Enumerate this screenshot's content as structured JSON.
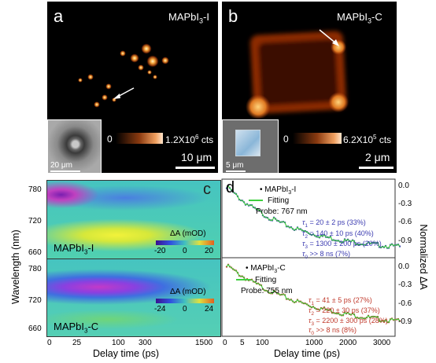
{
  "panel_a": {
    "letter": "a",
    "title_pre": "MAPbI",
    "title_sub": "3",
    "title_post": "-I",
    "cbar_min": "0",
    "cbar_max_pre": "1.2X10",
    "cbar_max_sup": "6",
    "cbar_max_post": " cts",
    "inset_scale": "20 μm",
    "scale": "10 μm"
  },
  "panel_b": {
    "letter": "b",
    "title_pre": "MAPbI",
    "title_sub": "3",
    "title_post": "-C",
    "cbar_min": "0",
    "cbar_max_pre": "6.2X10",
    "cbar_max_sup": "5",
    "cbar_max_post": " cts",
    "inset_scale": "5 μm",
    "scale": "2 μm"
  },
  "panel_c": {
    "letter": "c",
    "ylabel": "Wavelength (nm)",
    "xlabel": "Delay time (ps)",
    "yticks_top": [
      "780",
      "720",
      "660"
    ],
    "yticks_bottom": [
      "780",
      "720",
      "660"
    ],
    "xticks": [
      "0",
      "25",
      "100",
      "300",
      "1500"
    ],
    "top": {
      "name_pre": "MAPbI",
      "name_sub": "3",
      "name_post": "-I",
      "cbar_title": "ΔA (mOD)",
      "cbar_ticks": [
        "-20",
        "0",
        "20"
      ]
    },
    "bottom": {
      "name_pre": "MAPbI",
      "name_sub": "3",
      "name_post": "-C",
      "cbar_title": "ΔA (mOD)",
      "cbar_ticks": [
        "-24",
        "0",
        "24"
      ]
    }
  },
  "panel_d": {
    "letter": "d",
    "xlabel": "Delay time (ps)",
    "ylabel": "Normalized ΔA",
    "xticks": [
      "0",
      "5",
      "100",
      "1000",
      "2000",
      "3000"
    ],
    "yticks_top": [
      "0.0",
      "-0.3",
      "-0.6",
      "-0.9"
    ],
    "yticks_bottom": [
      "0.0",
      "-0.3",
      "-0.6",
      "-0.9"
    ],
    "top": {
      "legend_pre": "MAPbI",
      "legend_sub": "3",
      "legend_post": "-I",
      "fitting": "Fitting",
      "probe": "Probe: 767 nm",
      "color": "#3a3ab0",
      "fits": [
        {
          "sym": "τ",
          "sub": "1",
          "text": " = 20 ± 2 ps (33%)"
        },
        {
          "sym": "τ",
          "sub": "2",
          "text": " = 140 ± 10 ps (40%)"
        },
        {
          "sym": "τ",
          "sub": "3",
          "text": " = 1300 ± 200 ps (20%)"
        },
        {
          "sym": "τ",
          "sub": "0",
          "text": " >> 8 ns (7%)"
        }
      ]
    },
    "bottom": {
      "legend_pre": "MAPbI",
      "legend_sub": "3",
      "legend_post": "-C",
      "fitting": "Fitting",
      "probe": "Probe: 755 nm",
      "color": "#c0392b",
      "fits": [
        {
          "sym": "τ",
          "sub": "1",
          "text": " = 41 ± 5 ps (27%)"
        },
        {
          "sym": "τ",
          "sub": "2",
          "text": " = 220 ± 30 ps (37%)"
        },
        {
          "sym": "τ",
          "sub": "3",
          "text": " = 2200 ± 300 ps (28%)"
        },
        {
          "sym": "τ",
          "sub": "0",
          "text": " >> 8 ns (8%)"
        }
      ]
    },
    "fit_color": "#3fcf3f"
  }
}
